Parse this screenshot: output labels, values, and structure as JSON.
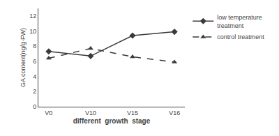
{
  "chart_data": {
    "type": "line",
    "categories": [
      "V0",
      "V10",
      "V15",
      "V16"
    ],
    "series": [
      {
        "name": "low temperature\ntreatment",
        "color": "#3a3a3a",
        "line_style": "solid",
        "marker": "diamond",
        "values": [
          7.3,
          6.7,
          9.4,
          9.9
        ]
      },
      {
        "name": "control treatment",
        "color": "#3a3a3a",
        "line_style": "dashed",
        "marker": "triangle-up",
        "values": [
          6.4,
          7.7,
          6.6,
          5.9
        ]
      }
    ],
    "xlabel": "different  growth  stage",
    "ylabel": "GA content(ng/g·FW)",
    "ylim": [
      0,
      13
    ],
    "yticks": [
      0,
      2,
      4,
      6,
      8,
      10,
      12
    ],
    "grid": false,
    "legend": "right"
  }
}
